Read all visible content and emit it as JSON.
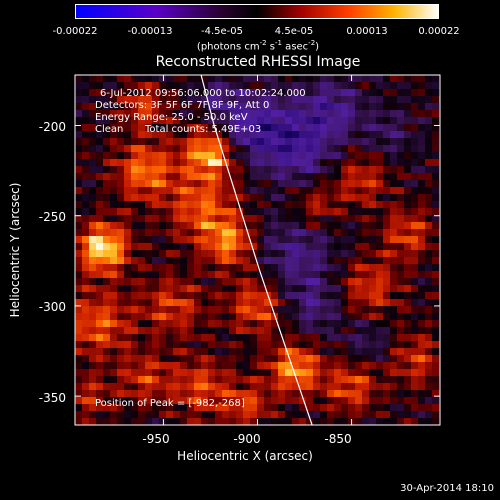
{
  "colorbar": {
    "tick_labels": [
      "-0.00022",
      "-0.00013",
      "-4.5e-05",
      "4.5e-05",
      "0.00013",
      "0.00022"
    ],
    "units": "(photons cm-2 s-1 asec-2)",
    "range": [
      -0.00022,
      0.00022
    ]
  },
  "title": "Reconstructed RHESSI Image",
  "annotations": {
    "time": "6-Jul-2012 09:56:06.000 to 10:02:24.000",
    "detectors": "Detectors: 3F 5F 6F 7F 8F 9F, Att 0",
    "energy": "Energy Range: 25.0 - 50.0 keV",
    "clean_label": "Clean",
    "counts": "Total counts: 5.49E+03",
    "peak": "Position of Peak = [-982,-268]"
  },
  "footer": "30-Apr-2014 18:10",
  "colors": {
    "background": "#000000",
    "text": "#ffffff",
    "limb_line": "#ffffff"
  },
  "chart_data": {
    "type": "heatmap",
    "title": "Reconstructed RHESSI Image",
    "xlabel": "Heliocentric X (arcsec)",
    "ylabel": "Heliocentric Y (arcsec)",
    "xlim": [
      -997,
      -803
    ],
    "ylim": [
      -366,
      -172
    ],
    "x_ticks": [
      -950,
      -900,
      -850
    ],
    "y_ticks": [
      -200,
      -250,
      -300,
      -350
    ],
    "x_tick_labels": [
      "-950",
      "-900",
      "-850"
    ],
    "y_tick_labels": [
      "-200",
      "-250",
      "-300",
      "-350"
    ],
    "colormap": "red-temperature (blue-purple negative, red-orange-yellow-white positive)",
    "peak_position": [
      -982,
      -268
    ],
    "solar_limb": [
      [
        -930,
        -172
      ],
      [
        -923,
        -200
      ],
      [
        -911,
        -240
      ],
      [
        -899,
        -280
      ],
      [
        -886,
        -320
      ],
      [
        -871,
        -366
      ]
    ],
    "grid": false
  }
}
